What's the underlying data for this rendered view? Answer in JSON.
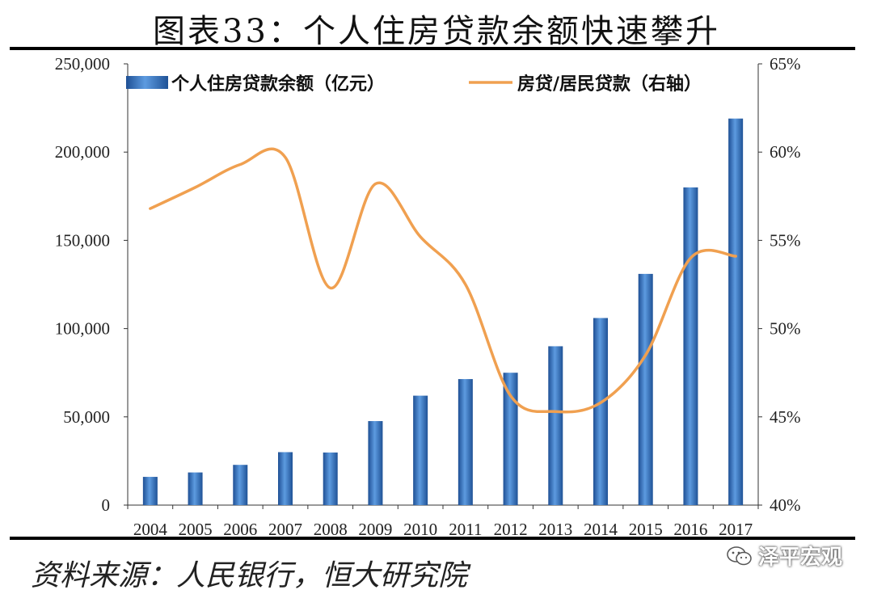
{
  "title": "图表33：个人住房贷款余额快速攀升",
  "source": "资料来源：人民银行，恒大研究院",
  "watermark": "泽平宏观",
  "chart_data": {
    "type": "bar+line",
    "categories": [
      "2004",
      "2005",
      "2006",
      "2007",
      "2008",
      "2009",
      "2010",
      "2011",
      "2012",
      "2013",
      "2014",
      "2015",
      "2016",
      "2017"
    ],
    "series": [
      {
        "name": "个人住房贷款余额（亿元）",
        "type": "bar",
        "axis": "left",
        "color": "#3a78c0",
        "values": [
          16000,
          18500,
          22800,
          30000,
          29800,
          47600,
          62000,
          71400,
          75000,
          90000,
          106000,
          131000,
          180000,
          219000
        ]
      },
      {
        "name": "房贷/居民贷款（右轴）",
        "type": "line",
        "axis": "right",
        "color": "#f0a050",
        "values": [
          56.8,
          58.0,
          59.3,
          59.7,
          52.3,
          58.2,
          55.2,
          52.5,
          46.2,
          45.3,
          45.8,
          48.5,
          54.0,
          54.1
        ]
      }
    ],
    "y_left": {
      "min": 0,
      "max": 250000,
      "ticks": [
        "0",
        "50,000",
        "100,000",
        "150,000",
        "200,000",
        "250,000"
      ]
    },
    "y_right": {
      "min": 40,
      "max": 65,
      "ticks": [
        "40%",
        "45%",
        "50%",
        "55%",
        "60%",
        "65%"
      ]
    },
    "legend_position": "top"
  }
}
